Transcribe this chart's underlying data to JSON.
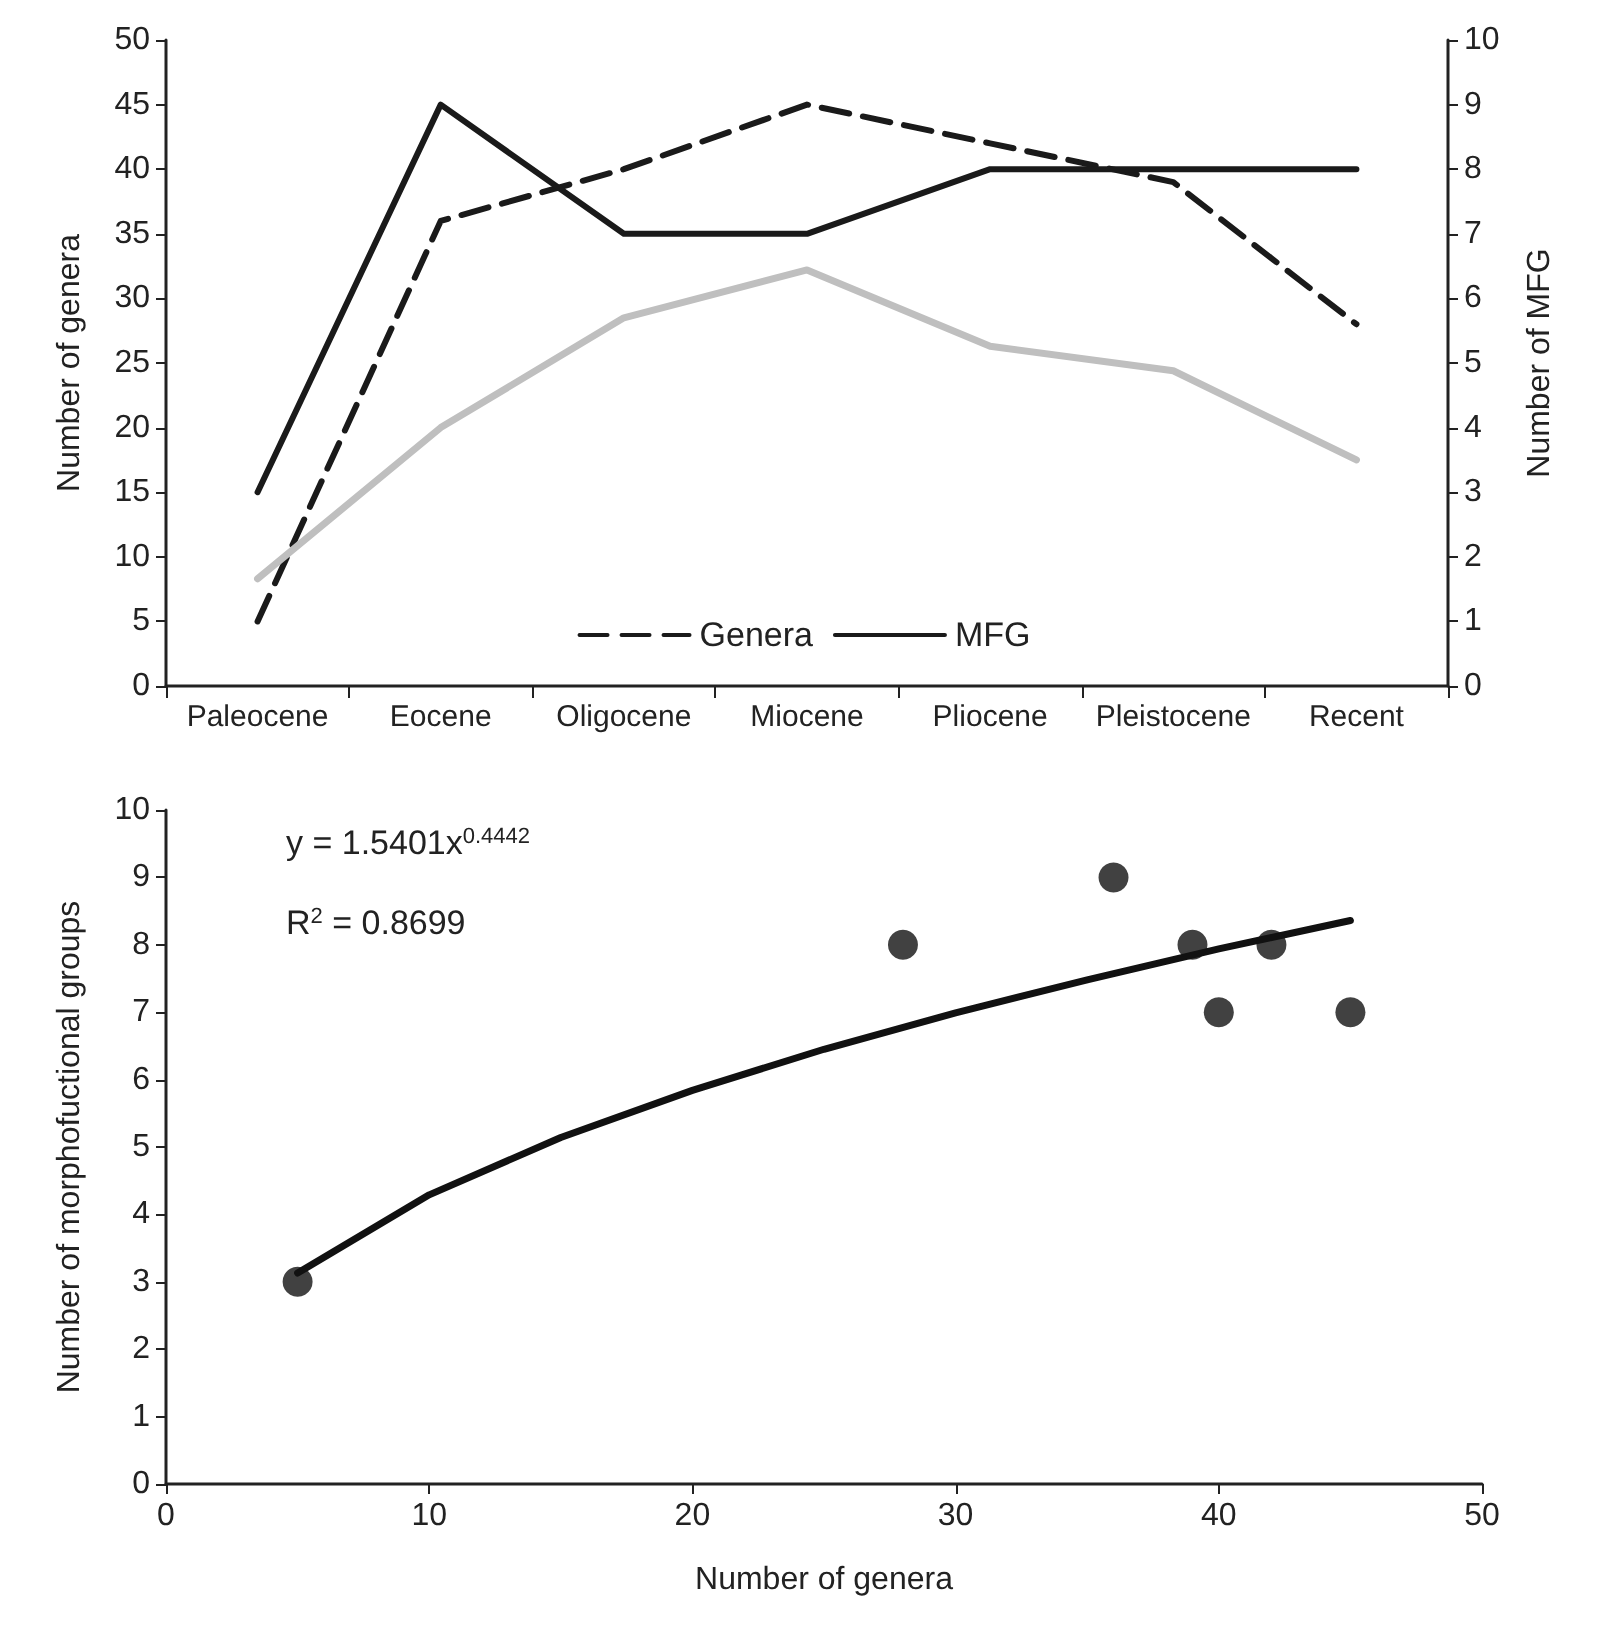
{
  "chart_data": [
    {
      "type": "line",
      "categories": [
        "Paleocene",
        "Eocene",
        "Oligocene",
        "Miocene",
        "Pliocene",
        "Pleistocene",
        "Recent"
      ],
      "ylabel": "Number of genera",
      "y2label": "Number of MFG",
      "ylim": [
        0,
        50
      ],
      "yticks": [
        0,
        5,
        10,
        15,
        20,
        25,
        30,
        35,
        40,
        45,
        50
      ],
      "y2lim": [
        0,
        10
      ],
      "y2ticks": [
        0,
        1,
        2,
        3,
        4,
        5,
        6,
        7,
        8,
        9,
        10
      ],
      "legend": "bottom",
      "grid": false,
      "marker": "none",
      "series": [
        {
          "name": "Genera",
          "color": "#1a1a1a",
          "line_style": "dashed",
          "values": [
            5,
            36,
            40,
            45,
            42,
            39,
            28
          ]
        },
        {
          "name": "MFG",
          "color": "#1a1a1a",
          "line_style": "solid",
          "axis": "y2",
          "values": [
            3,
            9,
            7,
            7,
            8,
            8,
            8
          ]
        },
        {
          "color": "#bfbfbf",
          "line_style": "solid",
          "values": [
            8.3,
            20,
            28.5,
            32.2,
            26.3,
            24.4,
            17.5
          ]
        }
      ]
    },
    {
      "type": "scatter",
      "xlabel": "Number of genera",
      "ylabel": "Number of morphofuctional groups",
      "xlim": [
        0,
        50
      ],
      "xticks": [
        0,
        10,
        20,
        30,
        40,
        50
      ],
      "ylim": [
        0,
        10
      ],
      "yticks": [
        0,
        1,
        2,
        3,
        4,
        5,
        6,
        7,
        8,
        9,
        10
      ],
      "grid": false,
      "legend": false,
      "marker": "circle",
      "annotations": [
        "y = 1.5401x$^{0.4442}$",
        "R$^{2}$ = 0.8699"
      ],
      "series": [
        {
          "color": "#111111",
          "x": [
            5,
            28,
            36,
            39,
            40,
            42,
            45
          ],
          "values": [
            3,
            8,
            9,
            8,
            7,
            8,
            7
          ]
        },
        {
          "type": "line",
          "color": "#111111",
          "marker": "none",
          "x": [
            5,
            10,
            15,
            20,
            25,
            30,
            35,
            40,
            45
          ],
          "values": [
            3.13,
            4.29,
            5.14,
            5.84,
            6.45,
            6.99,
            7.48,
            7.94,
            8.36
          ]
        }
      ]
    }
  ]
}
